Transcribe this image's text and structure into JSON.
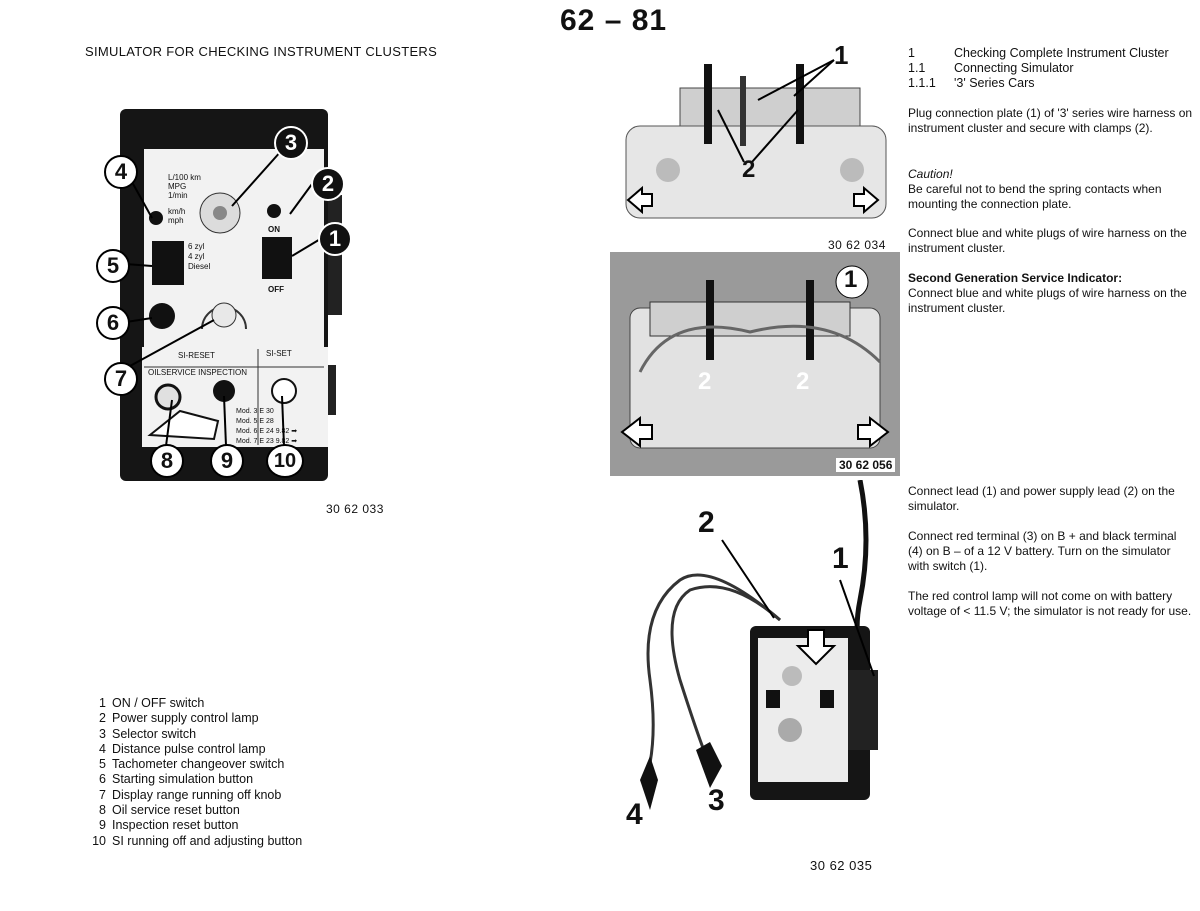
{
  "header": {
    "page_number": "62 – 81"
  },
  "left": {
    "heading": "SIMULATOR FOR CHECKING INSTRUMENT CLUSTERS",
    "figure_id": "30 62 033",
    "panel": {
      "lines": [
        "L/100 km",
        "MPG",
        "1/min",
        "km/h",
        "mph"
      ],
      "on": "ON",
      "off": "OFF",
      "zyl": [
        "6 zyl",
        "4 zyl",
        "Diesel"
      ],
      "si_reset": "SI-RESET",
      "si_set": "SI-SET",
      "oil_inspection": "OILSERVICE  INSPECTION",
      "models": [
        "Mod. 3  E 30",
        "Mod. 5  E 28",
        "Mod. 6  E 24   9.82 ➡",
        "Mod. 7  E 23   9.82 ➡"
      ]
    },
    "callouts": [
      "1",
      "2",
      "3",
      "4",
      "5",
      "6",
      "7",
      "8",
      "9",
      "10"
    ],
    "legend": [
      {
        "num": "1",
        "text": "ON / OFF switch"
      },
      {
        "num": "2",
        "text": "Power supply control lamp"
      },
      {
        "num": "3",
        "text": "Selector switch"
      },
      {
        "num": "4",
        "text": "Distance pulse control lamp"
      },
      {
        "num": "5",
        "text": "Tachometer changeover switch"
      },
      {
        "num": "6",
        "text": "Starting simulation button"
      },
      {
        "num": "7",
        "text": "Display range running off knob"
      },
      {
        "num": "8",
        "text": "Oil service reset button"
      },
      {
        "num": "9",
        "text": "Inspection reset button"
      },
      {
        "num": "10",
        "text": "SI running off and adjusting button"
      }
    ]
  },
  "photos": {
    "top": {
      "id": "30 62 034",
      "labels": [
        "1",
        "2",
        "2"
      ]
    },
    "middle": {
      "id": "30 62 056",
      "labels": [
        "1",
        "2",
        "2"
      ]
    },
    "bottom": {
      "id": "30 62 035",
      "labels": [
        "2",
        "1",
        "4",
        "3"
      ]
    }
  },
  "right": {
    "toc": [
      {
        "num": "1",
        "text": "Checking Complete Instrument Cluster"
      },
      {
        "num": "1.1",
        "text": "Connecting Simulator"
      },
      {
        "num": "1.1.1",
        "text": "'3' Series Cars"
      }
    ],
    "p1": "Plug connection plate (1) of '3' series wire harness on instrument cluster and secure with clamps (2).",
    "caution_title": "Caution!",
    "caution_text": "Be careful not to bend the spring contacts when mounting the connection plate.",
    "p2": "Connect blue and white plugs of wire harness on the instrument cluster.",
    "sg_title": "Second Generation Service Indicator:",
    "sg_text": "Connect blue and white plugs of wire harness on the instrument cluster.",
    "p3": "Connect lead (1) and power supply lead (2) on the simulator.",
    "p4": "Connect red terminal (3) on B + and black terminal (4) on B – of a 12 V battery. Turn on the simulator with switch (1).",
    "p5": "The red control lamp will not come on with battery voltage of < 11.5 V; the simulator is not ready for use."
  }
}
